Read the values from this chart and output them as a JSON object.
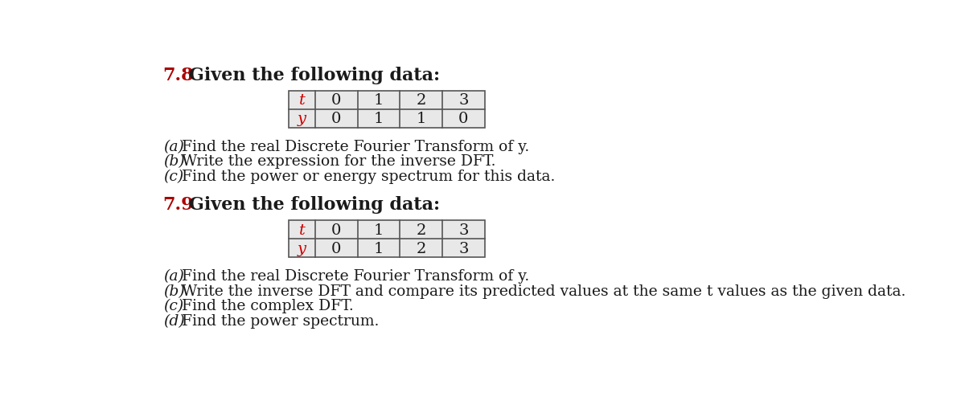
{
  "bg_color": "#ffffff",
  "cell_bg": "#e8e8e8",
  "label_color": "#cc0000",
  "text_color": "#1a1a1a",
  "problem_78": {
    "number": "7.8",
    "number_color": "#aa0000",
    "heading": "Given the following data:",
    "table": {
      "headers": [
        "t",
        "0",
        "1",
        "2",
        "3"
      ],
      "row2_label": "y",
      "row2_values": [
        "0",
        "1",
        "1",
        "0"
      ]
    },
    "items": [
      [
        "(a)",
        " Find the real Discrete Fourier Transform of ",
        "y",
        "."
      ],
      [
        "(b)",
        " Write the expression for the inverse DFT."
      ],
      [
        "(c)",
        " Find the power or energy spectrum for this data."
      ]
    ]
  },
  "problem_79": {
    "number": "7.9",
    "number_color": "#aa0000",
    "heading": "Given the following data:",
    "table": {
      "headers": [
        "t",
        "0",
        "1",
        "2",
        "3"
      ],
      "row2_label": "y",
      "row2_values": [
        "0",
        "1",
        "2",
        "3"
      ]
    },
    "items": [
      [
        "(a)",
        " Find the real Discrete Fourier Transform of ",
        "y",
        "."
      ],
      [
        "(b)",
        " Write the inverse DFT and compare its predicted values at the same ",
        "t",
        " values as the given data."
      ],
      [
        "(c)",
        " Find the complex DFT."
      ],
      [
        "(d)",
        " Find the power spectrum."
      ]
    ]
  },
  "font_family": "DejaVu Serif",
  "main_fontsize": 13.5,
  "heading_fontsize": 16,
  "table_fontsize": 14,
  "number_fontsize": 16,
  "paren_fontsize": 13.5
}
